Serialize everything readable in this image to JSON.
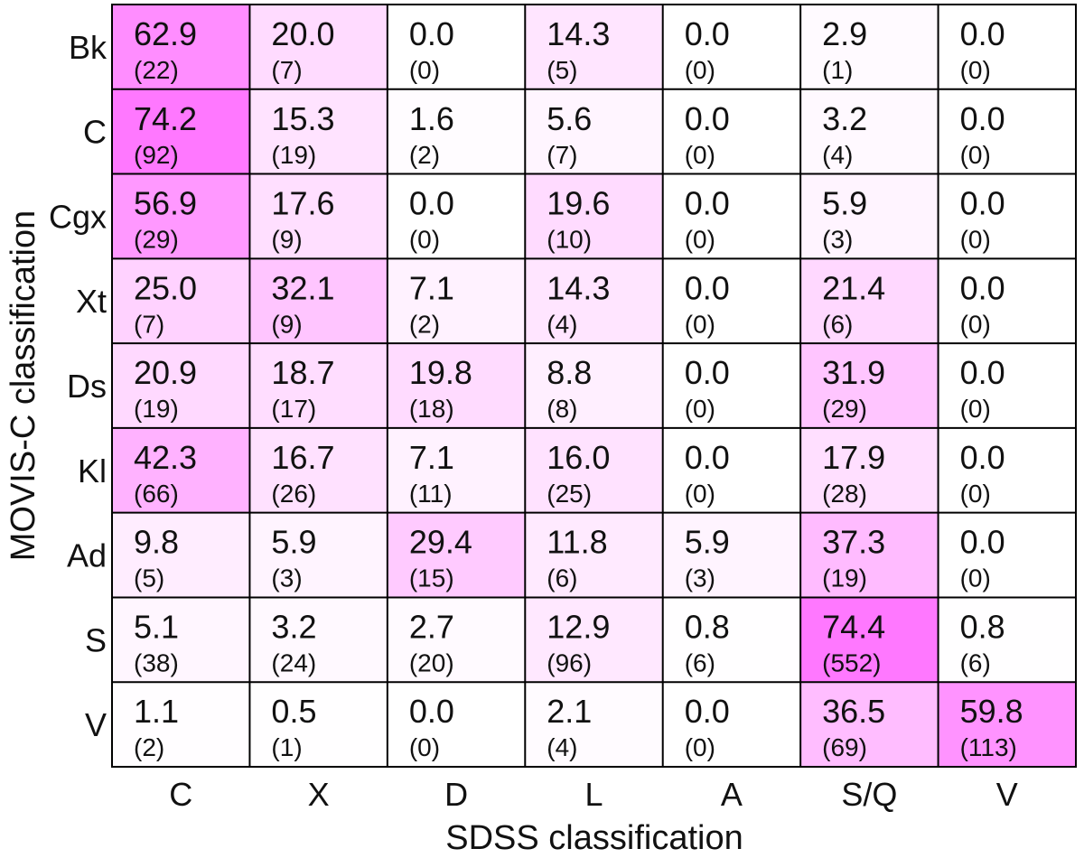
{
  "chart_data": {
    "type": "heatmap",
    "title": "",
    "xlabel": "SDSS classification",
    "ylabel": "MOVIS-C classification",
    "x_categories": [
      "C",
      "X",
      "D",
      "L",
      "A",
      "S/Q",
      "V"
    ],
    "y_categories": [
      "Bk",
      "C",
      "Cgx",
      "Xt",
      "Ds",
      "Kl",
      "Ad",
      "S",
      "V"
    ],
    "colormap": {
      "low": "#ffffff",
      "high": "#ff77ff",
      "max_value": 75
    },
    "percent": [
      [
        "62.9",
        "20.0",
        "0.0",
        "14.3",
        "0.0",
        "2.9",
        "0.0"
      ],
      [
        "74.2",
        "15.3",
        "1.6",
        "5.6",
        "0.0",
        "3.2",
        "0.0"
      ],
      [
        "56.9",
        "17.6",
        "0.0",
        "19.6",
        "0.0",
        "5.9",
        "0.0"
      ],
      [
        "25.0",
        "32.1",
        "7.1",
        "14.3",
        "0.0",
        "21.4",
        "0.0"
      ],
      [
        "20.9",
        "18.7",
        "19.8",
        "8.8",
        "0.0",
        "31.9",
        "0.0"
      ],
      [
        "42.3",
        "16.7",
        "7.1",
        "16.0",
        "0.0",
        "17.9",
        "0.0"
      ],
      [
        "9.8",
        "5.9",
        "29.4",
        "11.8",
        "5.9",
        "37.3",
        "0.0"
      ],
      [
        "5.1",
        "3.2",
        "2.7",
        "12.9",
        "0.8",
        "74.4",
        "0.8"
      ],
      [
        "1.1",
        "0.5",
        "0.0",
        "2.1",
        "0.0",
        "36.5",
        "59.8"
      ]
    ],
    "counts": [
      [
        "(22)",
        "(7)",
        "(0)",
        "(5)",
        "(0)",
        "(1)",
        "(0)"
      ],
      [
        "(92)",
        "(19)",
        "(2)",
        "(7)",
        "(0)",
        "(4)",
        "(0)"
      ],
      [
        "(29)",
        "(9)",
        "(0)",
        "(10)",
        "(0)",
        "(3)",
        "(0)"
      ],
      [
        "(7)",
        "(9)",
        "(2)",
        "(4)",
        "(0)",
        "(6)",
        "(0)"
      ],
      [
        "(19)",
        "(17)",
        "(18)",
        "(8)",
        "(0)",
        "(29)",
        "(0)"
      ],
      [
        "(66)",
        "(26)",
        "(11)",
        "(25)",
        "(0)",
        "(28)",
        "(0)"
      ],
      [
        "(5)",
        "(3)",
        "(15)",
        "(6)",
        "(3)",
        "(19)",
        "(0)"
      ],
      [
        "(38)",
        "(24)",
        "(20)",
        "(96)",
        "(6)",
        "(552)",
        "(6)"
      ],
      [
        "(2)",
        "(1)",
        "(0)",
        "(4)",
        "(0)",
        "(69)",
        "(113)"
      ]
    ]
  }
}
